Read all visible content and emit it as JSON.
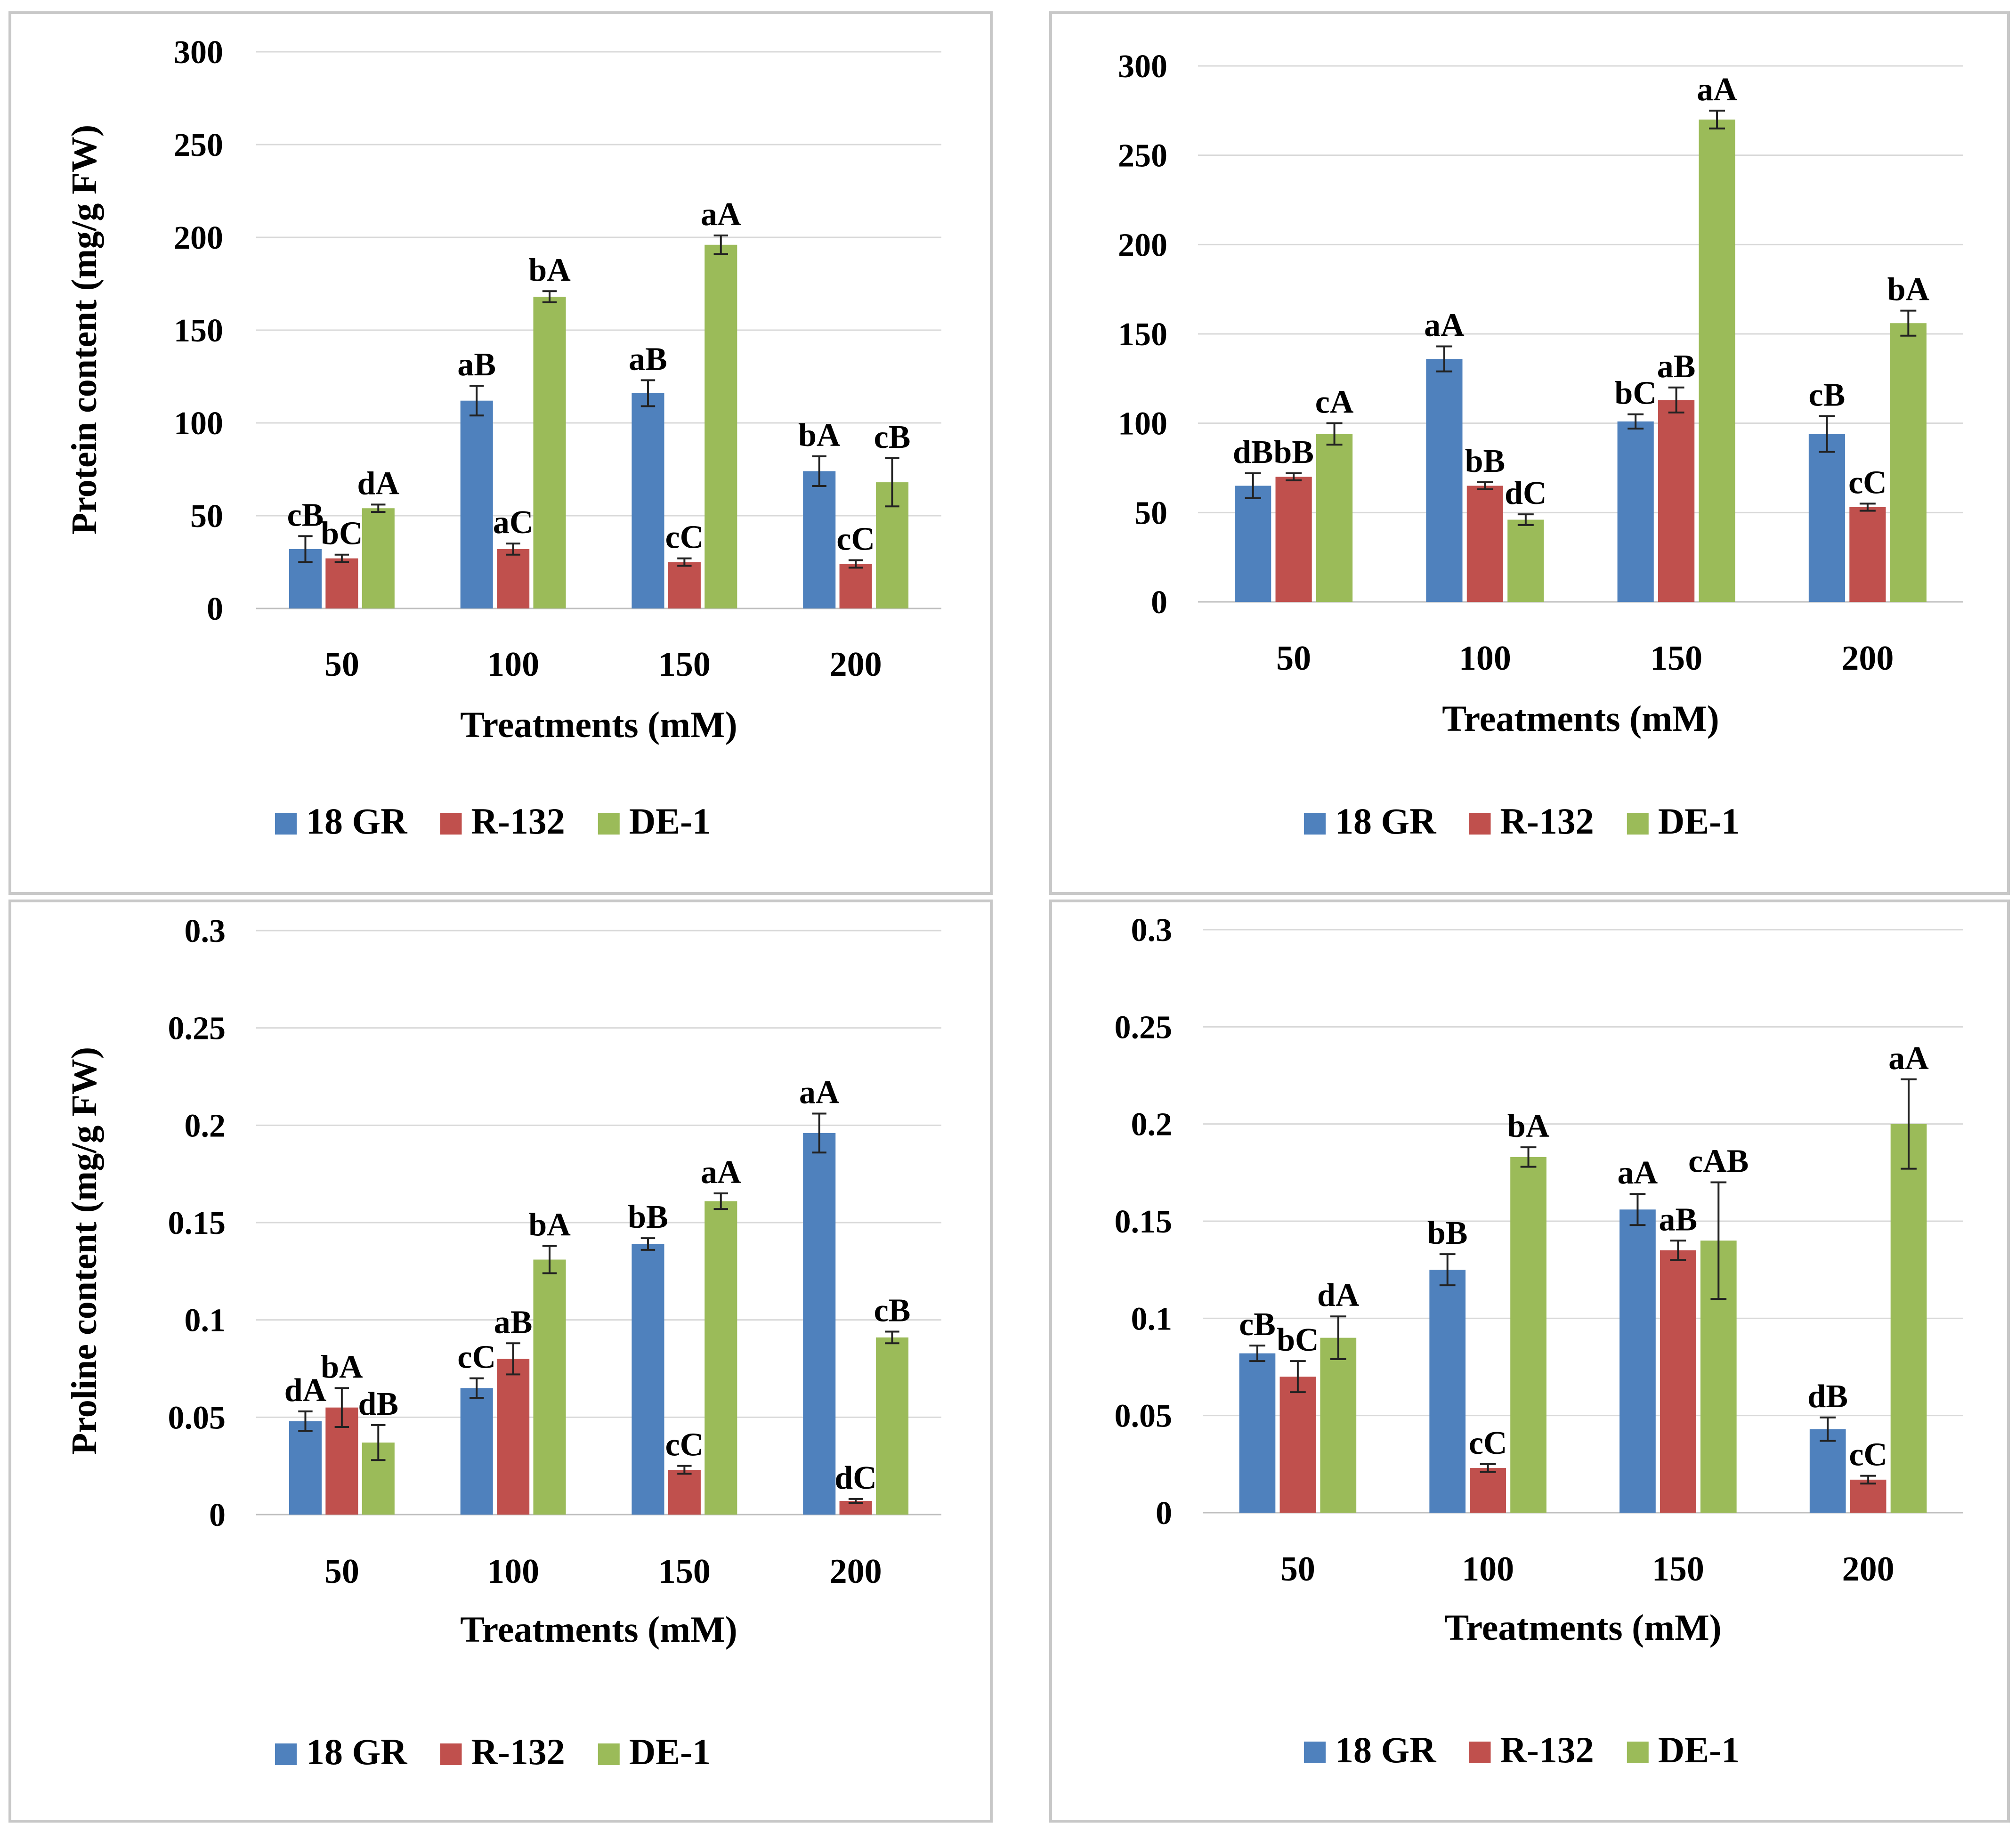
{
  "chart_data": [
    {
      "type": "bar",
      "title": "",
      "xlabel": "Treatments (mM)",
      "ylabel": "Protein content (mg/g FW)",
      "ylim": [
        0,
        300
      ],
      "yticks": [
        "0",
        "50",
        "100",
        "150",
        "200",
        "250",
        "300"
      ],
      "categories": [
        "50",
        "100",
        "150",
        "200"
      ],
      "series": [
        {
          "name": "18 GR",
          "color": "#4f81bd",
          "values": [
            32,
            112,
            116,
            74
          ],
          "errors": [
            7,
            8,
            7,
            8
          ],
          "labels": [
            "cB",
            "aB",
            "aB",
            "bA"
          ]
        },
        {
          "name": "R-132",
          "color": "#c0504d",
          "values": [
            27,
            32,
            25,
            24
          ],
          "errors": [
            2,
            3,
            2,
            2
          ],
          "labels": [
            "bC",
            "aC",
            "cC",
            "cC"
          ]
        },
        {
          "name": "DE-1",
          "color": "#9bbb59",
          "values": [
            54,
            168,
            196,
            68
          ],
          "errors": [
            2,
            3,
            5,
            13
          ],
          "labels": [
            "dA",
            "bA",
            "aA",
            "cB"
          ]
        }
      ],
      "legend_position": "bottom"
    },
    {
      "type": "bar",
      "title": "",
      "xlabel": "Treatments (mM)",
      "ylabel": "",
      "ylim": [
        0,
        300
      ],
      "yticks": [
        "0",
        "50",
        "100",
        "150",
        "200",
        "250",
        "300"
      ],
      "categories": [
        "50",
        "100",
        "150",
        "200"
      ],
      "series": [
        {
          "name": "18 GR",
          "color": "#4f81bd",
          "values": [
            65,
            136,
            101,
            94
          ],
          "errors": [
            7,
            7,
            4,
            10
          ],
          "labels": [
            "dB",
            "aA",
            "bC",
            "cB"
          ]
        },
        {
          "name": "R-132",
          "color": "#c0504d",
          "values": [
            70,
            65,
            113,
            53
          ],
          "errors": [
            2,
            2,
            7,
            2
          ],
          "labels": [
            "bB",
            "bB",
            "aB",
            "cC"
          ]
        },
        {
          "name": "DE-1",
          "color": "#9bbb59",
          "values": [
            94,
            46,
            270,
            156
          ],
          "errors": [
            6,
            3,
            5,
            7
          ],
          "labels": [
            "cA",
            "dC",
            "aA",
            "bA"
          ]
        }
      ],
      "legend_position": "bottom"
    },
    {
      "type": "bar",
      "title": "",
      "xlabel": "Treatments (mM)",
      "ylabel": "Proline  content (mg/g FW)",
      "ylim": [
        0,
        0.3
      ],
      "yticks": [
        "0",
        "0.05",
        "0.1",
        "0.15",
        "0.2",
        "0.25",
        "0.3"
      ],
      "categories": [
        "50",
        "100",
        "150",
        "200"
      ],
      "series": [
        {
          "name": "18 GR",
          "color": "#4f81bd",
          "values": [
            0.048,
            0.065,
            0.139,
            0.196
          ],
          "errors": [
            0.005,
            0.005,
            0.003,
            0.01
          ],
          "labels": [
            "dA",
            "cC",
            "bB",
            "aA"
          ]
        },
        {
          "name": "R-132",
          "color": "#c0504d",
          "values": [
            0.055,
            0.08,
            0.023,
            0.007
          ],
          "errors": [
            0.01,
            0.008,
            0.002,
            0.001
          ],
          "labels": [
            "bA",
            "aB",
            "cC",
            "dC"
          ]
        },
        {
          "name": "DE-1",
          "color": "#9bbb59",
          "values": [
            0.037,
            0.131,
            0.161,
            0.091
          ],
          "errors": [
            0.009,
            0.007,
            0.004,
            0.003
          ],
          "labels": [
            "dB",
            "bA",
            "aA",
            "cB"
          ]
        }
      ],
      "legend_position": "bottom"
    },
    {
      "type": "bar",
      "title": "",
      "xlabel": "Treatments (mM)",
      "ylabel": "",
      "ylim": [
        0,
        0.3
      ],
      "yticks": [
        "0",
        "0.05",
        "0.1",
        "0.15",
        "0.2",
        "0.25",
        "0.3"
      ],
      "categories": [
        "50",
        "100",
        "150",
        "200"
      ],
      "series": [
        {
          "name": "18 GR",
          "color": "#4f81bd",
          "values": [
            0.082,
            0.125,
            0.156,
            0.043
          ],
          "errors": [
            0.004,
            0.008,
            0.008,
            0.006
          ],
          "labels": [
            "cB",
            "bB",
            "aA",
            "dB"
          ]
        },
        {
          "name": "R-132",
          "color": "#c0504d",
          "values": [
            0.07,
            0.023,
            0.135,
            0.017
          ],
          "errors": [
            0.008,
            0.002,
            0.005,
            0.002
          ],
          "labels": [
            "bC",
            "cC",
            "aB",
            "cC"
          ]
        },
        {
          "name": "DE-1",
          "color": "#9bbb59",
          "values": [
            0.09,
            0.183,
            0.14,
            0.2
          ],
          "errors": [
            0.011,
            0.005,
            0.03,
            0.023
          ],
          "labels": [
            "dA",
            "bA",
            "cAB",
            "aA"
          ]
        }
      ],
      "legend_position": "bottom"
    }
  ]
}
